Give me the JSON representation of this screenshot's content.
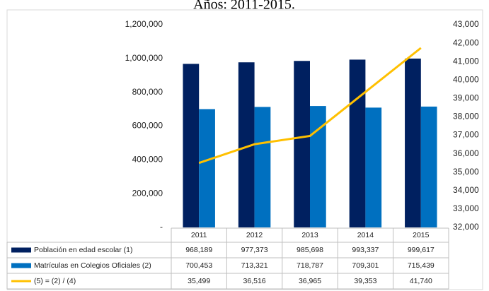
{
  "chart_data": {
    "type": "bar",
    "title": "Años: 2011-2015.",
    "categories": [
      "2011",
      "2012",
      "2013",
      "2014",
      "2015"
    ],
    "series": [
      {
        "name": "Población en edad escolar (1)",
        "color": "#002060",
        "type": "bar",
        "values": [
          968189,
          977373,
          985698,
          993337,
          999617
        ],
        "value_labels": [
          "968,189",
          "977,373",
          "985,698",
          "993,337",
          "999,617"
        ]
      },
      {
        "name": "Matrículas en Colegios Oficiales (2)",
        "color": "#0070c0",
        "type": "bar",
        "values": [
          700453,
          713321,
          718787,
          709301,
          715439
        ],
        "value_labels": [
          "700,453",
          "713,321",
          "718,787",
          "709,301",
          "715,439"
        ]
      },
      {
        "name": "(5) = (2) / (4)",
        "color": "#ffc000",
        "type": "line",
        "axis": "y2",
        "values": [
          35499,
          36516,
          36965,
          39353,
          41740
        ],
        "value_labels": [
          "35,499",
          "36,516",
          "36,965",
          "39,353",
          "41,740"
        ]
      }
    ],
    "ylim": [
      0,
      1200000
    ],
    "yticks": [
      {
        "value": 0,
        "label": "-"
      },
      {
        "value": 200000,
        "label": "200,000"
      },
      {
        "value": 400000,
        "label": "400,000"
      },
      {
        "value": 600000,
        "label": "600,000"
      },
      {
        "value": 800000,
        "label": "800,000"
      },
      {
        "value": 1000000,
        "label": "1,000,000"
      },
      {
        "value": 1200000,
        "label": "1,200,000"
      }
    ],
    "y2lim": [
      32000,
      43000
    ],
    "y2ticks": [
      {
        "value": 32000,
        "label": "32,000"
      },
      {
        "value": 33000,
        "label": "33,000"
      },
      {
        "value": 34000,
        "label": "34,000"
      },
      {
        "value": 35000,
        "label": "35,000"
      },
      {
        "value": 36000,
        "label": "36,000"
      },
      {
        "value": 37000,
        "label": "37,000"
      },
      {
        "value": 38000,
        "label": "38,000"
      },
      {
        "value": 39000,
        "label": "39,000"
      },
      {
        "value": 40000,
        "label": "40,000"
      },
      {
        "value": 41000,
        "label": "41,000"
      },
      {
        "value": 42000,
        "label": "42,000"
      },
      {
        "value": 43000,
        "label": "43,000"
      }
    ],
    "grid": false
  }
}
